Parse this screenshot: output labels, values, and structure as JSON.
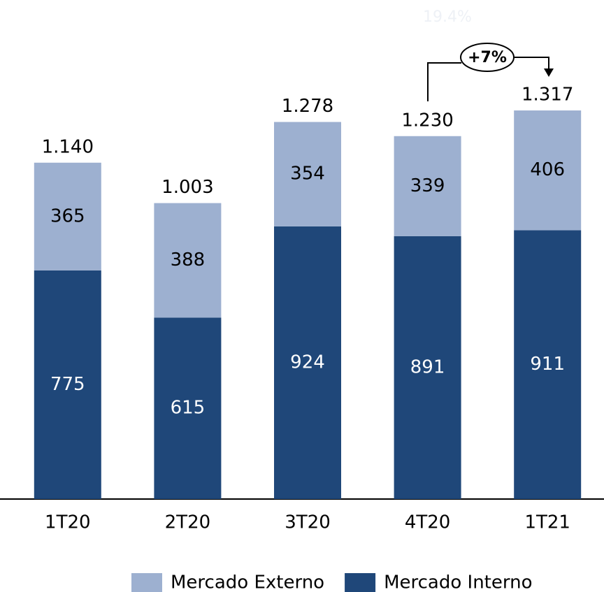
{
  "chart_data": {
    "type": "stacked_bar",
    "categories": [
      "1T20",
      "2T20",
      "3T20",
      "4T20",
      "1T21"
    ],
    "series": [
      {
        "name": "Mercado Interno",
        "color": "#1f4779",
        "values": [
          775,
          615,
          924,
          891,
          911
        ]
      },
      {
        "name": "Mercado Externo",
        "color": "#9db0d0",
        "values": [
          365,
          388,
          354,
          339,
          406
        ]
      }
    ],
    "totals": {
      "values": [
        1140,
        1003,
        1278,
        1230,
        1317
      ],
      "value_labels": [
        "1.140",
        "1.003",
        "1.278",
        "1.230",
        "1.317"
      ]
    },
    "annotations": [
      "+7%",
      "19.4%"
    ],
    "ylim": [
      0,
      1400
    ]
  }
}
